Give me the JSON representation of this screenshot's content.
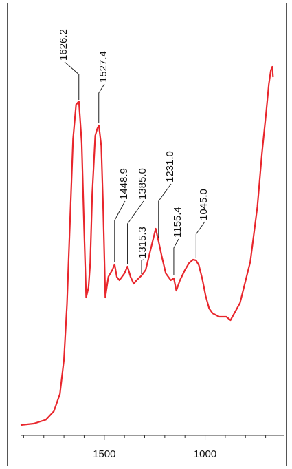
{
  "chart_data": {
    "type": "line",
    "x": [
      1915,
      1850,
      1790,
      1750,
      1720,
      1700,
      1685,
      1670,
      1655,
      1640,
      1626,
      1612,
      1600,
      1590,
      1578,
      1570,
      1560,
      1545,
      1535,
      1527,
      1515,
      1505,
      1495,
      1490,
      1480,
      1460,
      1449,
      1438,
      1425,
      1400,
      1385,
      1370,
      1354,
      1340,
      1315,
      1295,
      1270,
      1245,
      1231,
      1215,
      1195,
      1170,
      1155,
      1143,
      1125,
      1100,
      1080,
      1060,
      1045,
      1031,
      1014,
      997,
      980,
      963,
      930,
      895,
      874,
      827,
      776,
      741,
      718,
      697,
      684,
      674,
      667,
      663
    ],
    "series": [
      {
        "color": "#e8262c",
        "values": [
          3,
          3.4,
          4.5,
          7,
          12,
          22,
          38,
          62,
          86,
          96,
          97,
          85,
          60,
          40,
          43,
          50,
          70,
          87,
          89,
          90,
          84,
          65,
          40,
          42,
          46,
          48,
          49.6,
          46,
          45,
          47,
          49,
          46,
          44,
          45,
          46.4,
          48,
          54,
          60,
          56.4,
          52,
          47,
          45,
          45.6,
          42,
          45,
          48,
          50,
          51,
          50.8,
          49.4,
          45.4,
          40.4,
          36.8,
          35.4,
          34.4,
          34.4,
          33.4,
          38.4,
          50.4,
          66.4,
          82,
          94,
          102,
          106,
          107,
          104
        ]
      }
    ],
    "xlim": [
      1915,
      610
    ],
    "xticks": [
      1500,
      1000
    ],
    "xminorticks": [
      1900,
      1800,
      1700,
      1600,
      1400,
      1300,
      1200,
      1100,
      900,
      800,
      700
    ],
    "ylim": [
      0,
      110
    ],
    "peaks": [
      {
        "x": 1626.2,
        "label": "1626.2"
      },
      {
        "x": 1527.4,
        "label": "1527.4"
      },
      {
        "x": 1448.9,
        "label": "1448.9"
      },
      {
        "x": 1385.0,
        "label": "1385.0"
      },
      {
        "x": 1315.3,
        "label": "1315.3"
      },
      {
        "x": 1231.0,
        "label": "1231.0"
      },
      {
        "x": 1155.4,
        "label": "1155.4"
      },
      {
        "x": 1045.0,
        "label": "1045.0"
      }
    ]
  }
}
